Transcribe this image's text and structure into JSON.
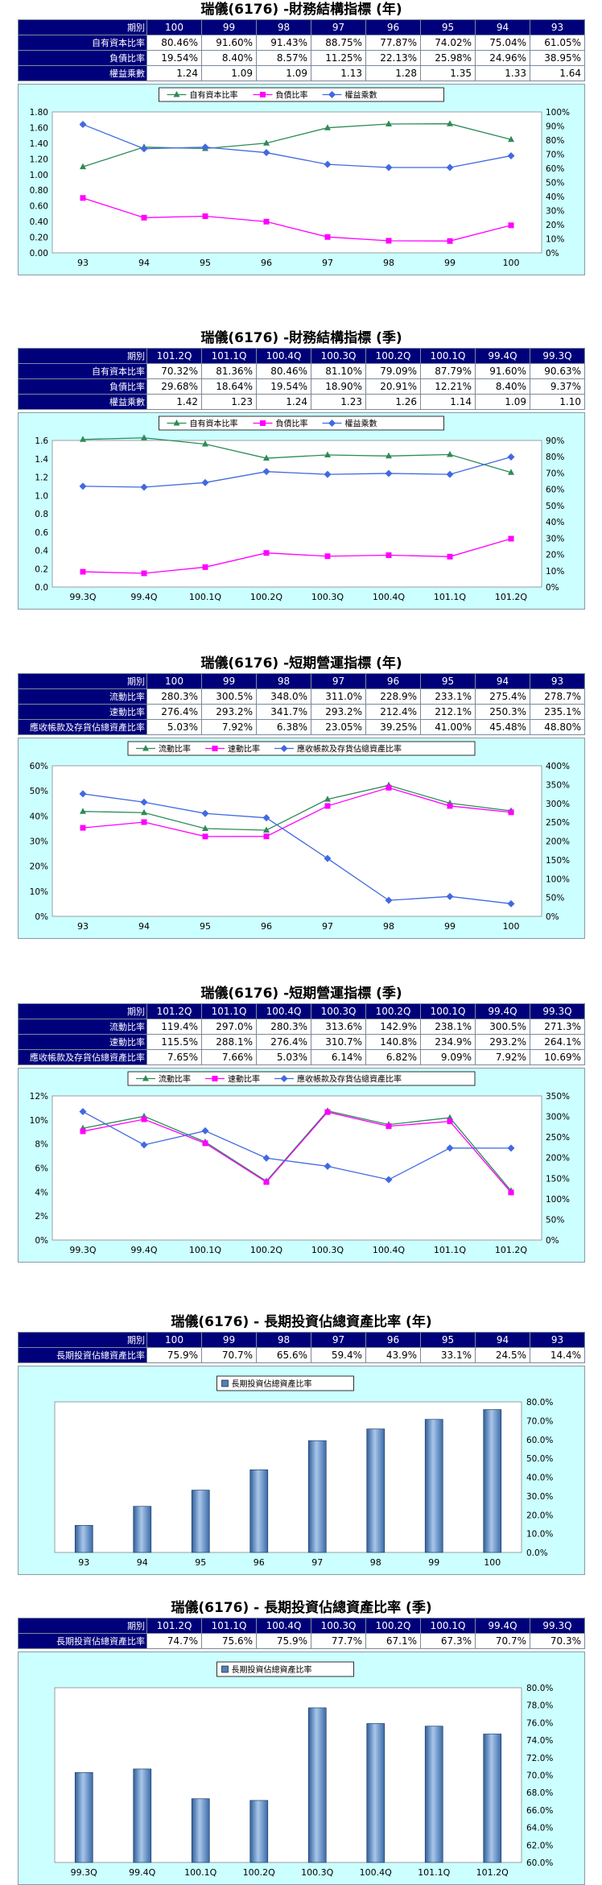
{
  "colors": {
    "header_bg": "#00007a",
    "chart_bg": "#ccffff",
    "green": "#2e8b57",
    "magenta": "#ff00ff",
    "blue": "#4169e1",
    "bar": "#4f81bd"
  },
  "sections": [
    {
      "title": "瑞儀(6176) -財務結構指標 (年)",
      "header_label": "期別",
      "periods": [
        "100",
        "99",
        "98",
        "97",
        "96",
        "95",
        "94",
        "93"
      ],
      "rows": [
        {
          "label": "自有資本比率",
          "values": [
            "80.46%",
            "91.60%",
            "91.43%",
            "88.75%",
            "77.87%",
            "74.02%",
            "75.04%",
            "61.05%"
          ]
        },
        {
          "label": "負債比率",
          "values": [
            "19.54%",
            "8.40%",
            "8.57%",
            "11.25%",
            "22.13%",
            "25.98%",
            "24.96%",
            "38.95%"
          ]
        },
        {
          "label": "權益乘數",
          "values": [
            "1.24",
            "1.09",
            "1.09",
            "1.13",
            "1.28",
            "1.35",
            "1.33",
            "1.64"
          ]
        }
      ]
    },
    {
      "title": "瑞儀(6176) -財務結構指標 (季)",
      "header_label": "期別",
      "periods": [
        "101.2Q",
        "101.1Q",
        "100.4Q",
        "100.3Q",
        "100.2Q",
        "100.1Q",
        "99.4Q",
        "99.3Q"
      ],
      "rows": [
        {
          "label": "自有資本比率",
          "values": [
            "70.32%",
            "81.36%",
            "80.46%",
            "81.10%",
            "79.09%",
            "87.79%",
            "91.60%",
            "90.63%"
          ]
        },
        {
          "label": "負債比率",
          "values": [
            "29.68%",
            "18.64%",
            "19.54%",
            "18.90%",
            "20.91%",
            "12.21%",
            "8.40%",
            "9.37%"
          ]
        },
        {
          "label": "權益乘數",
          "values": [
            "1.42",
            "1.23",
            "1.24",
            "1.23",
            "1.26",
            "1.14",
            "1.09",
            "1.10"
          ]
        }
      ]
    },
    {
      "title": "瑞儀(6176) -短期營運指標 (年)",
      "header_label": "期別",
      "periods": [
        "100",
        "99",
        "98",
        "97",
        "96",
        "95",
        "94",
        "93"
      ],
      "rows": [
        {
          "label": "流動比率",
          "values": [
            "280.3%",
            "300.5%",
            "348.0%",
            "311.0%",
            "228.9%",
            "233.1%",
            "275.4%",
            "278.7%"
          ]
        },
        {
          "label": "速動比率",
          "values": [
            "276.4%",
            "293.2%",
            "341.7%",
            "293.2%",
            "212.4%",
            "212.1%",
            "250.3%",
            "235.1%"
          ]
        },
        {
          "label": "應收帳款及存貨佔總資產比率",
          "values": [
            "5.03%",
            "7.92%",
            "6.38%",
            "23.05%",
            "39.25%",
            "41.00%",
            "45.48%",
            "48.80%"
          ]
        }
      ]
    },
    {
      "title": "瑞儀(6176) -短期營運指標 (季)",
      "header_label": "期別",
      "periods": [
        "101.2Q",
        "101.1Q",
        "100.4Q",
        "100.3Q",
        "100.2Q",
        "100.1Q",
        "99.4Q",
        "99.3Q"
      ],
      "rows": [
        {
          "label": "流動比率",
          "values": [
            "119.4%",
            "297.0%",
            "280.3%",
            "313.6%",
            "142.9%",
            "238.1%",
            "300.5%",
            "271.3%"
          ]
        },
        {
          "label": "速動比率",
          "values": [
            "115.5%",
            "288.1%",
            "276.4%",
            "310.7%",
            "140.8%",
            "234.9%",
            "293.2%",
            "264.1%"
          ]
        },
        {
          "label": "應收帳款及存貨佔總資產比率",
          "values": [
            "7.65%",
            "7.66%",
            "5.03%",
            "6.14%",
            "6.82%",
            "9.09%",
            "7.92%",
            "10.69%"
          ]
        }
      ]
    },
    {
      "title": "瑞儀(6176) - 長期投資佔總資產比率 (年)",
      "header_label": "期別",
      "periods": [
        "100",
        "99",
        "98",
        "97",
        "96",
        "95",
        "94",
        "93"
      ],
      "rows": [
        {
          "label": "長期投資佔總資產比率",
          "values": [
            "75.9%",
            "70.7%",
            "65.6%",
            "59.4%",
            "43.9%",
            "33.1%",
            "24.5%",
            "14.4%"
          ]
        }
      ]
    },
    {
      "title": "瑞儀(6176) - 長期投資佔總資產比率 (季)",
      "header_label": "期別",
      "periods": [
        "101.2Q",
        "101.1Q",
        "100.4Q",
        "100.3Q",
        "100.2Q",
        "100.1Q",
        "99.4Q",
        "99.3Q"
      ],
      "rows": [
        {
          "label": "長期投資佔總資產比率",
          "values": [
            "74.7%",
            "75.6%",
            "75.9%",
            "77.7%",
            "67.1%",
            "67.3%",
            "70.7%",
            "70.3%"
          ]
        }
      ]
    }
  ],
  "chart_data": [
    {
      "type": "line",
      "categories": [
        "93",
        "94",
        "95",
        "96",
        "97",
        "98",
        "99",
        "100"
      ],
      "left_axis": {
        "ticks": [
          "0.00",
          "0.20",
          "0.40",
          "0.60",
          "0.80",
          "1.00",
          "1.20",
          "1.40",
          "1.60",
          "1.80"
        ],
        "range": [
          0,
          1.8
        ]
      },
      "right_axis": {
        "ticks": [
          "0%",
          "10%",
          "20%",
          "30%",
          "40%",
          "50%",
          "60%",
          "70%",
          "80%",
          "90%",
          "100%"
        ],
        "range": [
          0,
          100
        ]
      },
      "series": [
        {
          "name": "自有資本比率",
          "axis": "right",
          "color": "#2e8b57",
          "marker": "triangle",
          "values": [
            61.05,
            75.04,
            74.02,
            77.87,
            88.75,
            91.43,
            91.6,
            80.46
          ]
        },
        {
          "name": "負債比率",
          "axis": "right",
          "color": "#ff00ff",
          "marker": "square",
          "values": [
            38.95,
            24.96,
            25.98,
            22.13,
            11.25,
            8.57,
            8.4,
            19.54
          ]
        },
        {
          "name": "權益乘數",
          "axis": "left",
          "color": "#4169e1",
          "marker": "diamond",
          "values": [
            1.64,
            1.33,
            1.35,
            1.28,
            1.13,
            1.09,
            1.09,
            1.24
          ]
        }
      ]
    },
    {
      "type": "line",
      "categories": [
        "99.3Q",
        "99.4Q",
        "100.1Q",
        "100.2Q",
        "100.3Q",
        "100.4Q",
        "101.1Q",
        "101.2Q"
      ],
      "left_axis": {
        "ticks": [
          "0.0",
          "0.2",
          "0.4",
          "0.6",
          "0.8",
          "1.0",
          "1.2",
          "1.4",
          "1.6"
        ],
        "range": [
          0,
          1.6
        ]
      },
      "right_axis": {
        "ticks": [
          "0%",
          "10%",
          "20%",
          "30%",
          "40%",
          "50%",
          "60%",
          "70%",
          "80%",
          "90%"
        ],
        "range": [
          0,
          90
        ]
      },
      "series": [
        {
          "name": "自有資本比率",
          "axis": "right",
          "color": "#2e8b57",
          "marker": "triangle",
          "values": [
            90.63,
            91.6,
            87.79,
            79.09,
            81.1,
            80.46,
            81.36,
            70.32
          ]
        },
        {
          "name": "負債比率",
          "axis": "right",
          "color": "#ff00ff",
          "marker": "square",
          "values": [
            9.37,
            8.4,
            12.21,
            20.91,
            18.9,
            19.54,
            18.64,
            29.68
          ]
        },
        {
          "name": "權益乘數",
          "axis": "left",
          "color": "#4169e1",
          "marker": "diamond",
          "values": [
            1.1,
            1.09,
            1.14,
            1.26,
            1.23,
            1.24,
            1.23,
            1.42
          ]
        }
      ]
    },
    {
      "type": "line",
      "categories": [
        "93",
        "94",
        "95",
        "96",
        "97",
        "98",
        "99",
        "100"
      ],
      "left_axis": {
        "ticks": [
          "0%",
          "10%",
          "20%",
          "30%",
          "40%",
          "50%",
          "60%"
        ],
        "range": [
          0,
          60
        ]
      },
      "right_axis": {
        "ticks": [
          "0%",
          "50%",
          "100%",
          "150%",
          "200%",
          "250%",
          "300%",
          "350%",
          "400%"
        ],
        "range": [
          0,
          400
        ]
      },
      "series": [
        {
          "name": "流動比率",
          "axis": "right",
          "color": "#2e8b57",
          "marker": "triangle",
          "values": [
            278.7,
            275.4,
            233.1,
            228.9,
            311.0,
            348.0,
            300.5,
            280.3
          ]
        },
        {
          "name": "速動比率",
          "axis": "right",
          "color": "#ff00ff",
          "marker": "square",
          "values": [
            235.1,
            250.3,
            212.1,
            212.4,
            293.2,
            341.7,
            293.2,
            276.4
          ]
        },
        {
          "name": "應收帳款及存貨佔總資產比率",
          "axis": "left",
          "color": "#4169e1",
          "marker": "diamond",
          "values": [
            48.8,
            45.48,
            41.0,
            39.25,
            23.05,
            6.38,
            7.92,
            5.03
          ]
        }
      ]
    },
    {
      "type": "line",
      "categories": [
        "99.3Q",
        "99.4Q",
        "100.1Q",
        "100.2Q",
        "100.3Q",
        "100.4Q",
        "101.1Q",
        "101.2Q"
      ],
      "left_axis": {
        "ticks": [
          "0%",
          "2%",
          "4%",
          "6%",
          "8%",
          "10%",
          "12%"
        ],
        "range": [
          0,
          12
        ]
      },
      "right_axis": {
        "ticks": [
          "0%",
          "50%",
          "100%",
          "150%",
          "200%",
          "250%",
          "300%",
          "350%"
        ],
        "range": [
          0,
          350
        ]
      },
      "series": [
        {
          "name": "流動比率",
          "axis": "right",
          "color": "#2e8b57",
          "marker": "triangle",
          "values": [
            271.3,
            300.5,
            238.1,
            142.9,
            313.6,
            280.3,
            297.0,
            119.4
          ]
        },
        {
          "name": "速動比率",
          "axis": "right",
          "color": "#ff00ff",
          "marker": "square",
          "values": [
            264.1,
            293.2,
            234.9,
            140.8,
            310.7,
            276.4,
            288.1,
            115.5
          ]
        },
        {
          "name": "應收帳款及存貨佔總資產比率",
          "axis": "left",
          "color": "#4169e1",
          "marker": "diamond",
          "values": [
            10.69,
            7.92,
            9.09,
            6.82,
            6.14,
            5.03,
            7.66,
            7.65
          ]
        }
      ]
    },
    {
      "type": "bar",
      "categories": [
        "93",
        "94",
        "95",
        "96",
        "97",
        "98",
        "99",
        "100"
      ],
      "right_axis": {
        "ticks": [
          "0.0%",
          "10.0%",
          "20.0%",
          "30.0%",
          "40.0%",
          "50.0%",
          "60.0%",
          "70.0%",
          "80.0%"
        ],
        "range": [
          0,
          80
        ]
      },
      "series": [
        {
          "name": "長期投資佔總資產比率",
          "values": [
            14.4,
            24.5,
            33.1,
            43.9,
            59.4,
            65.6,
            70.7,
            75.9
          ]
        }
      ]
    },
    {
      "type": "bar",
      "categories": [
        "99.3Q",
        "99.4Q",
        "100.1Q",
        "100.2Q",
        "100.3Q",
        "100.4Q",
        "101.1Q",
        "101.2Q"
      ],
      "right_axis": {
        "ticks": [
          "60.0%",
          "62.0%",
          "64.0%",
          "66.0%",
          "68.0%",
          "70.0%",
          "72.0%",
          "74.0%",
          "76.0%",
          "78.0%",
          "80.0%"
        ],
        "range": [
          60,
          80
        ]
      },
      "series": [
        {
          "name": "長期投資佔總資產比率",
          "values": [
            70.3,
            70.7,
            67.3,
            67.1,
            77.7,
            75.9,
            75.6,
            74.7
          ]
        }
      ]
    }
  ]
}
